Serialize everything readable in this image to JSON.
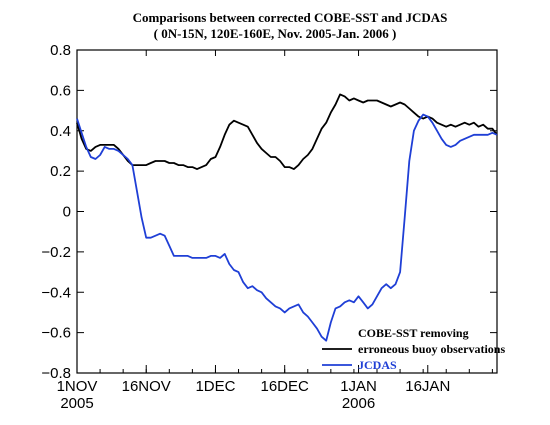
{
  "chart_data": {
    "type": "line",
    "title": "Comparisons between corrected COBE-SST and JCDAS",
    "subtitle": "( 0N-15N, 120E-160E, Nov. 2005-Jan. 2006 )",
    "xlabel": "",
    "ylabel": "",
    "ylim": [
      -0.8,
      0.8
    ],
    "yticks": [
      -0.8,
      -0.6,
      -0.4,
      -0.2,
      0,
      0.2,
      0.4,
      0.6,
      0.8
    ],
    "yticklabels": [
      "−0.8",
      "−0.6",
      "−0.4",
      "−0.2",
      "0",
      "0.2",
      "0.4",
      "0.6",
      "0.8"
    ],
    "xlim": [
      0,
      91
    ],
    "xticks": [
      {
        "day": 0,
        "label": "1NOV",
        "sublabel": "2005"
      },
      {
        "day": 15,
        "label": "16NOV",
        "sublabel": ""
      },
      {
        "day": 30,
        "label": "1DEC",
        "sublabel": ""
      },
      {
        "day": 45,
        "label": "16DEC",
        "sublabel": ""
      },
      {
        "day": 61,
        "label": "1JAN",
        "sublabel": "2006"
      },
      {
        "day": 76,
        "label": "16JAN",
        "sublabel": ""
      }
    ],
    "grid": false,
    "legend_position": "bottom-right",
    "series": [
      {
        "name": "COBE-SST removing erroneous buoy observations",
        "color": "#000000",
        "points": [
          [
            0,
            0.44
          ],
          [
            1,
            0.36
          ],
          [
            2,
            0.31
          ],
          [
            3,
            0.3
          ],
          [
            4,
            0.32
          ],
          [
            5,
            0.33
          ],
          [
            6,
            0.33
          ],
          [
            7,
            0.33
          ],
          [
            8,
            0.33
          ],
          [
            9,
            0.31
          ],
          [
            10,
            0.28
          ],
          [
            11,
            0.25
          ],
          [
            12,
            0.23
          ],
          [
            13,
            0.23
          ],
          [
            14,
            0.23
          ],
          [
            15,
            0.23
          ],
          [
            16,
            0.24
          ],
          [
            17,
            0.25
          ],
          [
            18,
            0.25
          ],
          [
            19,
            0.25
          ],
          [
            20,
            0.24
          ],
          [
            21,
            0.24
          ],
          [
            22,
            0.23
          ],
          [
            23,
            0.23
          ],
          [
            24,
            0.22
          ],
          [
            25,
            0.22
          ],
          [
            26,
            0.21
          ],
          [
            27,
            0.22
          ],
          [
            28,
            0.23
          ],
          [
            29,
            0.26
          ],
          [
            30,
            0.27
          ],
          [
            31,
            0.32
          ],
          [
            32,
            0.38
          ],
          [
            33,
            0.43
          ],
          [
            34,
            0.45
          ],
          [
            35,
            0.44
          ],
          [
            36,
            0.43
          ],
          [
            37,
            0.42
          ],
          [
            38,
            0.38
          ],
          [
            39,
            0.34
          ],
          [
            40,
            0.31
          ],
          [
            41,
            0.29
          ],
          [
            42,
            0.27
          ],
          [
            43,
            0.27
          ],
          [
            44,
            0.25
          ],
          [
            45,
            0.22
          ],
          [
            46,
            0.22
          ],
          [
            47,
            0.21
          ],
          [
            48,
            0.23
          ],
          [
            49,
            0.26
          ],
          [
            50,
            0.28
          ],
          [
            51,
            0.31
          ],
          [
            52,
            0.36
          ],
          [
            53,
            0.41
          ],
          [
            54,
            0.44
          ],
          [
            55,
            0.49
          ],
          [
            56,
            0.53
          ],
          [
            57,
            0.58
          ],
          [
            58,
            0.57
          ],
          [
            59,
            0.55
          ],
          [
            60,
            0.56
          ],
          [
            61,
            0.55
          ],
          [
            62,
            0.54
          ],
          [
            63,
            0.55
          ],
          [
            64,
            0.55
          ],
          [
            65,
            0.55
          ],
          [
            66,
            0.54
          ],
          [
            67,
            0.53
          ],
          [
            68,
            0.52
          ],
          [
            69,
            0.53
          ],
          [
            70,
            0.54
          ],
          [
            71,
            0.53
          ],
          [
            72,
            0.51
          ],
          [
            73,
            0.49
          ],
          [
            74,
            0.47
          ],
          [
            75,
            0.46
          ],
          [
            76,
            0.47
          ],
          [
            77,
            0.46
          ],
          [
            78,
            0.44
          ],
          [
            79,
            0.43
          ],
          [
            80,
            0.42
          ],
          [
            81,
            0.43
          ],
          [
            82,
            0.42
          ],
          [
            83,
            0.43
          ],
          [
            84,
            0.44
          ],
          [
            85,
            0.43
          ],
          [
            86,
            0.44
          ],
          [
            87,
            0.42
          ],
          [
            88,
            0.43
          ],
          [
            89,
            0.41
          ],
          [
            90,
            0.41
          ],
          [
            91,
            0.38
          ]
        ]
      },
      {
        "name": "JCDAS",
        "color": "#1f3fd6",
        "points": [
          [
            0,
            0.46
          ],
          [
            1,
            0.39
          ],
          [
            2,
            0.32
          ],
          [
            3,
            0.27
          ],
          [
            4,
            0.26
          ],
          [
            5,
            0.28
          ],
          [
            6,
            0.32
          ],
          [
            7,
            0.31
          ],
          [
            8,
            0.31
          ],
          [
            9,
            0.3
          ],
          [
            10,
            0.28
          ],
          [
            11,
            0.26
          ],
          [
            12,
            0.23
          ],
          [
            13,
            0.1
          ],
          [
            14,
            -0.03
          ],
          [
            15,
            -0.13
          ],
          [
            16,
            -0.13
          ],
          [
            17,
            -0.12
          ],
          [
            18,
            -0.11
          ],
          [
            19,
            -0.12
          ],
          [
            20,
            -0.17
          ],
          [
            21,
            -0.22
          ],
          [
            22,
            -0.22
          ],
          [
            23,
            -0.22
          ],
          [
            24,
            -0.22
          ],
          [
            25,
            -0.23
          ],
          [
            26,
            -0.23
          ],
          [
            27,
            -0.23
          ],
          [
            28,
            -0.23
          ],
          [
            29,
            -0.22
          ],
          [
            30,
            -0.22
          ],
          [
            31,
            -0.23
          ],
          [
            32,
            -0.21
          ],
          [
            33,
            -0.26
          ],
          [
            34,
            -0.29
          ],
          [
            35,
            -0.3
          ],
          [
            36,
            -0.35
          ],
          [
            37,
            -0.38
          ],
          [
            38,
            -0.37
          ],
          [
            39,
            -0.39
          ],
          [
            40,
            -0.4
          ],
          [
            41,
            -0.43
          ],
          [
            42,
            -0.45
          ],
          [
            43,
            -0.47
          ],
          [
            44,
            -0.48
          ],
          [
            45,
            -0.5
          ],
          [
            46,
            -0.48
          ],
          [
            47,
            -0.47
          ],
          [
            48,
            -0.46
          ],
          [
            49,
            -0.5
          ],
          [
            50,
            -0.52
          ],
          [
            51,
            -0.55
          ],
          [
            52,
            -0.58
          ],
          [
            53,
            -0.62
          ],
          [
            54,
            -0.64
          ],
          [
            55,
            -0.55
          ],
          [
            56,
            -0.48
          ],
          [
            57,
            -0.47
          ],
          [
            58,
            -0.45
          ],
          [
            59,
            -0.44
          ],
          [
            60,
            -0.45
          ],
          [
            61,
            -0.42
          ],
          [
            62,
            -0.45
          ],
          [
            63,
            -0.48
          ],
          [
            64,
            -0.46
          ],
          [
            65,
            -0.42
          ],
          [
            66,
            -0.38
          ],
          [
            67,
            -0.36
          ],
          [
            68,
            -0.38
          ],
          [
            69,
            -0.36
          ],
          [
            70,
            -0.3
          ],
          [
            71,
            -0.03
          ],
          [
            72,
            0.25
          ],
          [
            73,
            0.4
          ],
          [
            74,
            0.45
          ],
          [
            75,
            0.48
          ],
          [
            76,
            0.47
          ],
          [
            77,
            0.44
          ],
          [
            78,
            0.4
          ],
          [
            79,
            0.36
          ],
          [
            80,
            0.33
          ],
          [
            81,
            0.32
          ],
          [
            82,
            0.33
          ],
          [
            83,
            0.35
          ],
          [
            84,
            0.36
          ],
          [
            85,
            0.37
          ],
          [
            86,
            0.38
          ],
          [
            87,
            0.38
          ],
          [
            88,
            0.38
          ],
          [
            89,
            0.38
          ],
          [
            90,
            0.39
          ],
          [
            91,
            0.38
          ]
        ]
      }
    ],
    "legend": [
      {
        "line1": "COBE-SST removing",
        "line2": "erroneous buoy observations",
        "color": "#000000"
      },
      {
        "line1": "JCDAS",
        "line2": "",
        "color": "#1f3fd6"
      }
    ]
  }
}
